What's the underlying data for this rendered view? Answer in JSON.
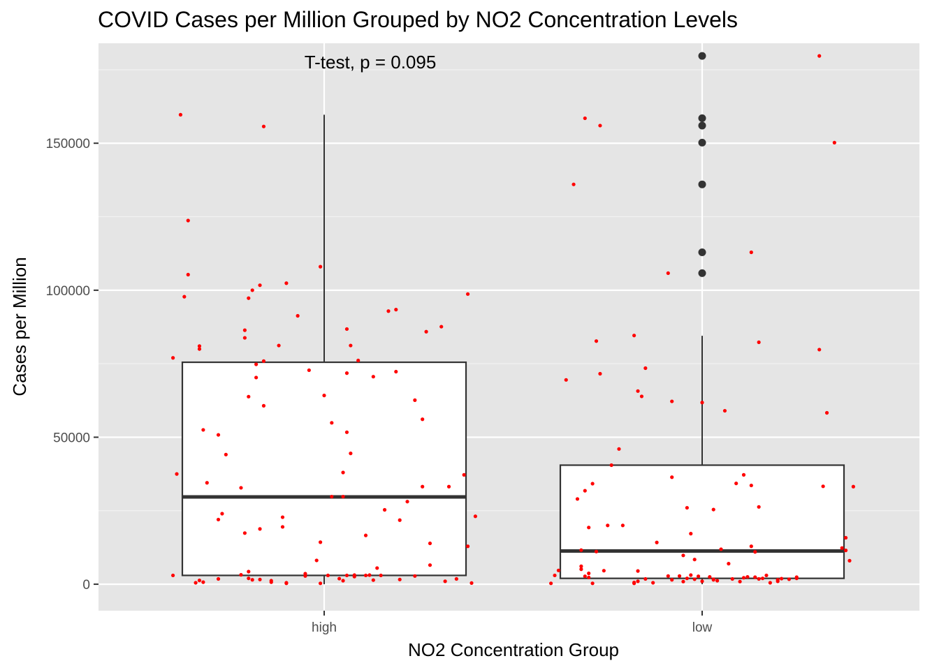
{
  "chart_data": {
    "type": "boxplot",
    "title": "COVID Cases per Million Grouped by NO2 Concentration Levels",
    "xlabel": "NO2 Concentration Group",
    "ylabel": "Cases per Million",
    "annotation": "T-test, p = 0.095",
    "categories": [
      "high",
      "low"
    ],
    "ylim": [
      -9000,
      184000
    ],
    "yticks": [
      0,
      50000,
      100000,
      150000
    ],
    "ytick_labels": [
      "0",
      "50000",
      "100000",
      "150000"
    ],
    "grid": true,
    "boxes": [
      {
        "category": "high",
        "whisker_low": 0,
        "q1": 3000,
        "median": 29700,
        "q3": 75500,
        "whisker_high": 159700,
        "outliers": []
      },
      {
        "category": "low",
        "whisker_low": 0,
        "q1": 2000,
        "median": 11300,
        "q3": 40500,
        "whisker_high": 84500,
        "outliers": [
          105800,
          112900,
          136000,
          150200,
          156000,
          158500,
          179700
        ]
      }
    ],
    "jitter_color": "#ff0000",
    "jitter_points": {
      "high": [
        [
          -0.4,
          77000
        ],
        [
          -0.4,
          3000
        ],
        [
          -0.39,
          37500
        ],
        [
          -0.38,
          159700
        ],
        [
          -0.37,
          97800
        ],
        [
          -0.36,
          123700
        ],
        [
          -0.36,
          105300
        ],
        [
          -0.34,
          500
        ],
        [
          -0.33,
          81000
        ],
        [
          -0.33,
          80000
        ],
        [
          -0.33,
          1300
        ],
        [
          -0.32,
          52500
        ],
        [
          -0.32,
          700
        ],
        [
          -0.31,
          34500
        ],
        [
          -0.28,
          22000
        ],
        [
          -0.28,
          50800
        ],
        [
          -0.28,
          1800
        ],
        [
          -0.27,
          24000
        ],
        [
          -0.26,
          44100
        ],
        [
          -0.22,
          32800
        ],
        [
          -0.22,
          3200
        ],
        [
          -0.21,
          86400
        ],
        [
          -0.21,
          17400
        ],
        [
          -0.21,
          83800
        ],
        [
          -0.2,
          97300
        ],
        [
          -0.2,
          4300
        ],
        [
          -0.2,
          2000
        ],
        [
          -0.2,
          63800
        ],
        [
          -0.19,
          100000
        ],
        [
          -0.19,
          1500
        ],
        [
          -0.18,
          70300
        ],
        [
          -0.18,
          74800
        ],
        [
          -0.17,
          18800
        ],
        [
          -0.17,
          101700
        ],
        [
          -0.17,
          1600
        ],
        [
          -0.16,
          75900
        ],
        [
          -0.16,
          155700
        ],
        [
          -0.16,
          60700
        ],
        [
          -0.14,
          700
        ],
        [
          -0.14,
          1200
        ],
        [
          -0.12,
          81200
        ],
        [
          -0.11,
          22800
        ],
        [
          -0.11,
          19500
        ],
        [
          -0.1,
          500
        ],
        [
          -0.1,
          300
        ],
        [
          -0.1,
          102400
        ],
        [
          -0.07,
          91300
        ],
        [
          -0.05,
          3600
        ],
        [
          -0.05,
          2800
        ],
        [
          -0.04,
          72800
        ],
        [
          -0.02,
          8100
        ],
        [
          -0.01,
          14300
        ],
        [
          -0.01,
          108000
        ],
        [
          -0.01,
          300
        ],
        [
          0.0,
          64200
        ],
        [
          0.01,
          3000
        ],
        [
          0.02,
          29800
        ],
        [
          0.02,
          54900
        ],
        [
          0.04,
          1900
        ],
        [
          0.05,
          1200
        ],
        [
          0.05,
          38000
        ],
        [
          0.05,
          29800
        ],
        [
          0.06,
          51700
        ],
        [
          0.06,
          86800
        ],
        [
          0.06,
          71800
        ],
        [
          0.06,
          3000
        ],
        [
          0.07,
          81200
        ],
        [
          0.07,
          44500
        ],
        [
          0.08,
          2600
        ],
        [
          0.08,
          3100
        ],
        [
          0.09,
          76100
        ],
        [
          0.11,
          16600
        ],
        [
          0.11,
          3000
        ],
        [
          0.12,
          3100
        ],
        [
          0.13,
          70600
        ],
        [
          0.13,
          1400
        ],
        [
          0.14,
          5500
        ],
        [
          0.15,
          3000
        ],
        [
          0.16,
          25300
        ],
        [
          0.17,
          92900
        ],
        [
          0.19,
          93400
        ],
        [
          0.19,
          72300
        ],
        [
          0.2,
          1600
        ],
        [
          0.2,
          21800
        ],
        [
          0.22,
          28100
        ],
        [
          0.24,
          62600
        ],
        [
          0.24,
          2800
        ],
        [
          0.26,
          56100
        ],
        [
          0.26,
          33200
        ],
        [
          0.27,
          85900
        ],
        [
          0.28,
          13900
        ],
        [
          0.28,
          6500
        ],
        [
          0.31,
          87600
        ],
        [
          0.32,
          1000
        ],
        [
          0.33,
          33200
        ],
        [
          0.35,
          1800
        ],
        [
          0.37,
          37200
        ],
        [
          0.38,
          98700
        ],
        [
          0.38,
          12900
        ],
        [
          0.39,
          400
        ],
        [
          0.4,
          23100
        ]
      ],
      "low": [
        [
          -0.4,
          300
        ],
        [
          -0.39,
          3000
        ],
        [
          -0.38,
          4700
        ],
        [
          -0.36,
          69500
        ],
        [
          -0.34,
          136000
        ],
        [
          -0.33,
          29000
        ],
        [
          -0.32,
          5100
        ],
        [
          -0.32,
          11600
        ],
        [
          -0.32,
          6100
        ],
        [
          -0.31,
          158500
        ],
        [
          -0.31,
          31800
        ],
        [
          -0.31,
          2700
        ],
        [
          -0.3,
          2300
        ],
        [
          -0.3,
          19300
        ],
        [
          -0.3,
          3700
        ],
        [
          -0.29,
          300
        ],
        [
          -0.29,
          34200
        ],
        [
          -0.28,
          82700
        ],
        [
          -0.28,
          11100
        ],
        [
          -0.27,
          156000
        ],
        [
          -0.27,
          71600
        ],
        [
          -0.26,
          4600
        ],
        [
          -0.25,
          20000
        ],
        [
          -0.24,
          40500
        ],
        [
          -0.22,
          46000
        ],
        [
          -0.21,
          20000
        ],
        [
          -0.18,
          600
        ],
        [
          -0.18,
          84600
        ],
        [
          -0.18,
          300
        ],
        [
          -0.17,
          4500
        ],
        [
          -0.17,
          65700
        ],
        [
          -0.17,
          1000
        ],
        [
          -0.16,
          63900
        ],
        [
          -0.15,
          1800
        ],
        [
          -0.15,
          73500
        ],
        [
          -0.13,
          500
        ],
        [
          -0.12,
          14200
        ],
        [
          -0.09,
          2800
        ],
        [
          -0.09,
          105800
        ],
        [
          -0.08,
          62200
        ],
        [
          -0.08,
          1500
        ],
        [
          -0.08,
          36400
        ],
        [
          -0.06,
          2800
        ],
        [
          -0.05,
          9800
        ],
        [
          -0.05,
          900
        ],
        [
          -0.04,
          26000
        ],
        [
          -0.04,
          2000
        ],
        [
          -0.03,
          3100
        ],
        [
          -0.03,
          17200
        ],
        [
          -0.02,
          8400
        ],
        [
          -0.02,
          1700
        ],
        [
          -0.01,
          2700
        ],
        [
          0.0,
          61800
        ],
        [
          0.0,
          1000
        ],
        [
          0.02,
          2500
        ],
        [
          0.03,
          1500
        ],
        [
          0.03,
          25400
        ],
        [
          0.03,
          1700
        ],
        [
          0.04,
          1200
        ],
        [
          0.05,
          11900
        ],
        [
          0.06,
          59000
        ],
        [
          0.07,
          7000
        ],
        [
          0.08,
          1800
        ],
        [
          0.09,
          34300
        ],
        [
          0.1,
          900
        ],
        [
          0.11,
          37200
        ],
        [
          0.11,
          2200
        ],
        [
          0.12,
          2500
        ],
        [
          0.13,
          112900
        ],
        [
          0.13,
          33600
        ],
        [
          0.13,
          12900
        ],
        [
          0.14,
          11000
        ],
        [
          0.14,
          2400
        ],
        [
          0.15,
          82300
        ],
        [
          0.15,
          26300
        ],
        [
          0.15,
          1800
        ],
        [
          0.16,
          2000
        ],
        [
          0.17,
          3000
        ],
        [
          0.18,
          500
        ],
        [
          0.2,
          1000
        ],
        [
          0.2,
          1500
        ],
        [
          0.21,
          1900
        ],
        [
          0.23,
          1700
        ],
        [
          0.25,
          2000
        ],
        [
          0.25,
          2400
        ],
        [
          0.31,
          179700
        ],
        [
          0.31,
          79800
        ],
        [
          0.32,
          33300
        ],
        [
          0.33,
          58300
        ],
        [
          0.35,
          150200
        ],
        [
          0.37,
          12300
        ],
        [
          0.38,
          15800
        ],
        [
          0.38,
          11500
        ],
        [
          0.39,
          8000
        ],
        [
          0.4,
          33200
        ]
      ]
    }
  }
}
